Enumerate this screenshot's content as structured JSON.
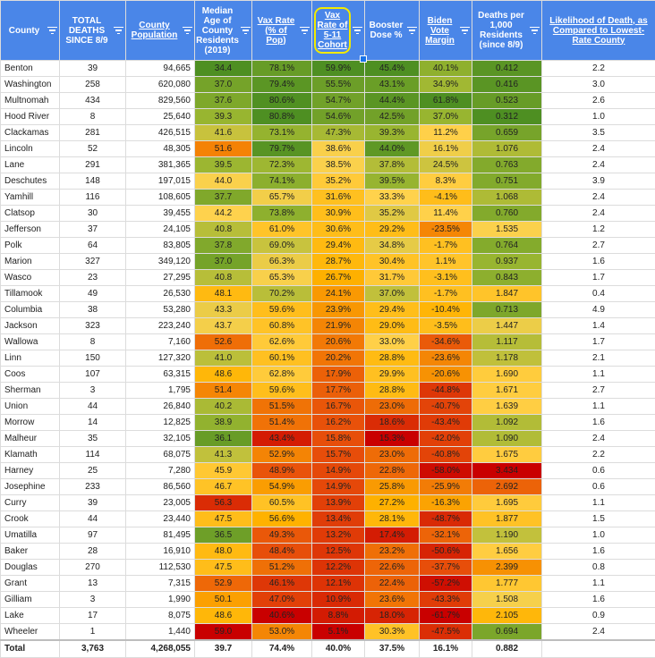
{
  "columns": [
    {
      "label": "County",
      "underline": false
    },
    {
      "label": "TOTAL DEATHS SINCE 8/9",
      "underline": false
    },
    {
      "label": "County Population",
      "underline": true
    },
    {
      "label": "Median Age of County Residents (2019)",
      "underline": false
    },
    {
      "label": "Vax Rate (% of Pop)",
      "underline": true
    },
    {
      "label": "Vax Rate of 5-11 Cohort",
      "underline": true
    },
    {
      "label": "Booster Dose %",
      "underline": false
    },
    {
      "label": "Biden Vote Margin",
      "underline": true
    },
    {
      "label": "Deaths per 1,000 Residents (since 8/9)",
      "underline": false
    },
    {
      "label": "Likelihood of Death, as Compared to Lowest-Rate County",
      "underline": true
    }
  ],
  "rows": [
    [
      "Benton",
      "39",
      "94,665",
      "34.4",
      "78.1%",
      "59.9%",
      "45.4%",
      "40.1%",
      "0.412",
      "2.2"
    ],
    [
      "Washington",
      "258",
      "620,080",
      "37.0",
      "79.4%",
      "55.5%",
      "43.1%",
      "34.9%",
      "0.416",
      "3.0"
    ],
    [
      "Multnomah",
      "434",
      "829,560",
      "37.6",
      "80.6%",
      "54.7%",
      "44.4%",
      "61.8%",
      "0.523",
      "2.6"
    ],
    [
      "Hood River",
      "8",
      "25,640",
      "39.3",
      "80.8%",
      "54.6%",
      "42.5%",
      "37.0%",
      "0.312",
      "1.0"
    ],
    [
      "Clackamas",
      "281",
      "426,515",
      "41.6",
      "73.1%",
      "47.3%",
      "39.3%",
      "11.2%",
      "0.659",
      "3.5"
    ],
    [
      "Lincoln",
      "52",
      "48,305",
      "51.6",
      "79.7%",
      "38.6%",
      "44.0%",
      "16.1%",
      "1.076",
      "2.4"
    ],
    [
      "Lane",
      "291",
      "381,365",
      "39.5",
      "72.3%",
      "38.5%",
      "37.8%",
      "24.5%",
      "0.763",
      "2.4"
    ],
    [
      "Deschutes",
      "148",
      "197,015",
      "44.0",
      "74.1%",
      "35.2%",
      "39.5%",
      "8.3%",
      "0.751",
      "3.9"
    ],
    [
      "Yamhill",
      "116",
      "108,605",
      "37.7",
      "65.7%",
      "31.6%",
      "33.3%",
      "-4.1%",
      "1.068",
      "2.4"
    ],
    [
      "Clatsop",
      "30",
      "39,455",
      "44.2",
      "73.8%",
      "30.9%",
      "35.2%",
      "11.4%",
      "0.760",
      "2.4"
    ],
    [
      "Jefferson",
      "37",
      "24,105",
      "40.8",
      "61.0%",
      "30.6%",
      "29.2%",
      "-23.5%",
      "1.535",
      "1.2"
    ],
    [
      "Polk",
      "64",
      "83,805",
      "37.8",
      "69.0%",
      "29.4%",
      "34.8%",
      "-1.7%",
      "0.764",
      "2.7"
    ],
    [
      "Marion",
      "327",
      "349,120",
      "37.0",
      "66.3%",
      "28.7%",
      "30.4%",
      "1.1%",
      "0.937",
      "1.6"
    ],
    [
      "Wasco",
      "23",
      "27,295",
      "40.8",
      "65.3%",
      "26.7%",
      "31.7%",
      "-3.1%",
      "0.843",
      "1.7"
    ],
    [
      "Tillamook",
      "49",
      "26,530",
      "48.1",
      "70.2%",
      "24.1%",
      "37.0%",
      "-1.7%",
      "1.847",
      "0.4"
    ],
    [
      "Columbia",
      "38",
      "53,280",
      "43.3",
      "59.6%",
      "23.9%",
      "29.4%",
      "-10.4%",
      "0.713",
      "4.9"
    ],
    [
      "Jackson",
      "323",
      "223,240",
      "43.7",
      "60.8%",
      "21.9%",
      "29.0%",
      "-3.5%",
      "1.447",
      "1.4"
    ],
    [
      "Wallowa",
      "8",
      "7,160",
      "52.6",
      "62.6%",
      "20.6%",
      "33.0%",
      "-34.6%",
      "1.117",
      "1.7"
    ],
    [
      "Linn",
      "150",
      "127,320",
      "41.0",
      "60.1%",
      "20.2%",
      "28.8%",
      "-23.6%",
      "1.178",
      "2.1"
    ],
    [
      "Coos",
      "107",
      "63,315",
      "48.6",
      "62.8%",
      "17.9%",
      "29.9%",
      "-20.6%",
      "1.690",
      "1.1"
    ],
    [
      "Sherman",
      "3",
      "1,795",
      "51.4",
      "59.6%",
      "17.7%",
      "28.8%",
      "-44.8%",
      "1.671",
      "2.7"
    ],
    [
      "Union",
      "44",
      "26,840",
      "40.2",
      "51.5%",
      "16.7%",
      "23.0%",
      "-40.7%",
      "1.639",
      "1.1"
    ],
    [
      "Morrow",
      "14",
      "12,825",
      "38.9",
      "51.4%",
      "16.2%",
      "18.6%",
      "-43.4%",
      "1.092",
      "1.6"
    ],
    [
      "Malheur",
      "35",
      "32,105",
      "36.1",
      "43.4%",
      "15.8%",
      "15.3%",
      "-42.0%",
      "1.090",
      "2.4"
    ],
    [
      "Klamath",
      "114",
      "68,075",
      "41.3",
      "52.9%",
      "15.7%",
      "23.0%",
      "-40.8%",
      "1.675",
      "2.2"
    ],
    [
      "Harney",
      "25",
      "7,280",
      "45.9",
      "48.9%",
      "14.9%",
      "22.8%",
      "-58.0%",
      "3.434",
      "0.6"
    ],
    [
      "Josephine",
      "233",
      "86,560",
      "46.7",
      "54.9%",
      "14.9%",
      "25.8%",
      "-25.9%",
      "2.692",
      "0.6"
    ],
    [
      "Curry",
      "39",
      "23,005",
      "56.3",
      "60.5%",
      "13.9%",
      "27.2%",
      "-16.3%",
      "1.695",
      "1.1"
    ],
    [
      "Crook",
      "44",
      "23,440",
      "47.5",
      "56.6%",
      "13.4%",
      "28.1%",
      "-48.7%",
      "1.877",
      "1.5"
    ],
    [
      "Umatilla",
      "97",
      "81,495",
      "36.5",
      "49.3%",
      "13.2%",
      "17.4%",
      "-32.1%",
      "1.190",
      "1.0"
    ],
    [
      "Baker",
      "28",
      "16,910",
      "48.0",
      "48.4%",
      "12.5%",
      "23.2%",
      "-50.6%",
      "1.656",
      "1.6"
    ],
    [
      "Douglas",
      "270",
      "112,530",
      "47.5",
      "51.2%",
      "12.2%",
      "22.6%",
      "-37.7%",
      "2.399",
      "0.8"
    ],
    [
      "Grant",
      "13",
      "7,315",
      "52.9",
      "46.1%",
      "12.1%",
      "22.4%",
      "-57.2%",
      "1.777",
      "1.1"
    ],
    [
      "Gilliam",
      "3",
      "1,990",
      "50.1",
      "47.0%",
      "10.9%",
      "23.6%",
      "-43.3%",
      "1.508",
      "1.6"
    ],
    [
      "Lake",
      "17",
      "8,075",
      "48.6",
      "40.6%",
      "8.8%",
      "18.0%",
      "-61.7%",
      "2.105",
      "0.9"
    ],
    [
      "Wheeler",
      "1",
      "1,440",
      "59.0",
      "53.0%",
      "5.1%",
      "30.3%",
      "-47.5%",
      "0.694",
      "2.4"
    ]
  ],
  "total": [
    "Total",
    "3,763",
    "4,268,055",
    "39.7",
    "74.4%",
    "40.0%",
    "37.5%",
    "16.1%",
    "0.882",
    ""
  ],
  "color_scales": {
    "3": {
      "min": 34.4,
      "max": 59.0,
      "reverse": true
    },
    "4": {
      "min": 40.6,
      "max": 80.8,
      "reverse": false
    },
    "5": {
      "min": 5.1,
      "max": 59.9,
      "reverse": false
    },
    "6": {
      "min": 15.3,
      "max": 45.4,
      "reverse": false
    },
    "7": {
      "min": -61.7,
      "max": 61.8,
      "reverse": false
    },
    "8": {
      "min": 0.312,
      "max": 3.434,
      "reverse": true
    }
  },
  "gradient_stops": [
    "#c90000",
    "#e8500a",
    "#ffb300",
    "#ffd24d",
    "#98b530",
    "#4e8f22"
  ],
  "selected_column": 5
}
